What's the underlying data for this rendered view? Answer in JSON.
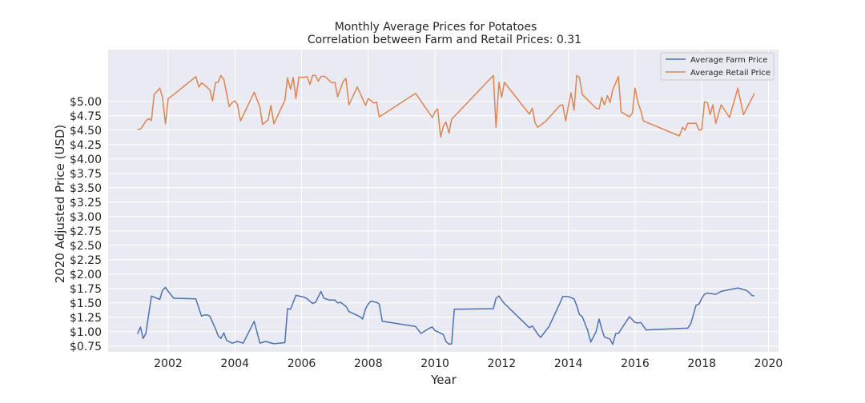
{
  "chart_data": {
    "type": "line",
    "title": "Monthly Average Prices for Potatoes",
    "subtitle": "Correlation between Farm and Retail Prices: 0.31",
    "xlabel": "Year",
    "ylabel": "2020 Adjusted Price (USD)",
    "xlim": [
      2000.2,
      2020.3
    ],
    "ylim": [
      0.65,
      5.9
    ],
    "x_ticks": [
      2002,
      2004,
      2006,
      2008,
      2010,
      2012,
      2014,
      2016,
      2018,
      2020
    ],
    "y_ticks": [
      0.75,
      1.0,
      1.25,
      1.5,
      1.75,
      2.0,
      2.25,
      2.5,
      2.75,
      3.0,
      3.25,
      3.5,
      3.75,
      4.0,
      4.25,
      4.5,
      4.75,
      5.0
    ],
    "y_tick_labels": [
      "$0.75",
      "$1.00",
      "$1.25",
      "$1.50",
      "$1.75",
      "$2.00",
      "$2.25",
      "$2.50",
      "$2.75",
      "$3.00",
      "$3.25",
      "$3.50",
      "$3.75",
      "$4.00",
      "$4.25",
      "$4.50",
      "$4.75",
      "$5.00"
    ],
    "grid": true,
    "legend_position": "top-right",
    "series": [
      {
        "name": "Average Farm Price",
        "color": "#4c72b0",
        "points": [
          [
            2001.08,
            0.96
          ],
          [
            2001.17,
            1.08
          ],
          [
            2001.25,
            0.88
          ],
          [
            2001.33,
            0.97
          ],
          [
            2001.5,
            1.62
          ],
          [
            2001.75,
            1.56
          ],
          [
            2001.83,
            1.72
          ],
          [
            2001.92,
            1.77
          ],
          [
            2002.0,
            1.7
          ],
          [
            2002.17,
            1.58
          ],
          [
            2002.83,
            1.57
          ],
          [
            2003.0,
            1.27
          ],
          [
            2003.08,
            1.29
          ],
          [
            2003.17,
            1.29
          ],
          [
            2003.25,
            1.27
          ],
          [
            2003.42,
            1.05
          ],
          [
            2003.5,
            0.93
          ],
          [
            2003.58,
            0.88
          ],
          [
            2003.67,
            0.98
          ],
          [
            2003.75,
            0.85
          ],
          [
            2003.92,
            0.8
          ],
          [
            2004.08,
            0.83
          ],
          [
            2004.25,
            0.8
          ],
          [
            2004.58,
            1.18
          ],
          [
            2004.75,
            0.8
          ],
          [
            2004.92,
            0.83
          ],
          [
            2005.17,
            0.79
          ],
          [
            2005.5,
            0.81
          ],
          [
            2005.58,
            1.4
          ],
          [
            2005.67,
            1.39
          ],
          [
            2005.83,
            1.63
          ],
          [
            2005.92,
            1.62
          ],
          [
            2006.08,
            1.6
          ],
          [
            2006.17,
            1.57
          ],
          [
            2006.33,
            1.49
          ],
          [
            2006.42,
            1.51
          ],
          [
            2006.58,
            1.7
          ],
          [
            2006.67,
            1.58
          ],
          [
            2006.83,
            1.55
          ],
          [
            2006.92,
            1.55
          ],
          [
            2007.0,
            1.55
          ],
          [
            2007.08,
            1.5
          ],
          [
            2007.17,
            1.51
          ],
          [
            2007.33,
            1.44
          ],
          [
            2007.42,
            1.35
          ],
          [
            2007.75,
            1.26
          ],
          [
            2007.83,
            1.22
          ],
          [
            2007.92,
            1.4
          ],
          [
            2008.0,
            1.48
          ],
          [
            2008.08,
            1.53
          ],
          [
            2008.25,
            1.51
          ],
          [
            2008.33,
            1.48
          ],
          [
            2008.42,
            1.18
          ],
          [
            2009.42,
            1.09
          ],
          [
            2009.58,
            0.97
          ],
          [
            2009.83,
            1.06
          ],
          [
            2009.92,
            1.08
          ],
          [
            2010.0,
            1.02
          ],
          [
            2010.08,
            1.0
          ],
          [
            2010.25,
            0.95
          ],
          [
            2010.33,
            0.83
          ],
          [
            2010.42,
            0.78
          ],
          [
            2010.5,
            0.79
          ],
          [
            2010.58,
            1.39
          ],
          [
            2011.75,
            1.4
          ],
          [
            2011.83,
            1.58
          ],
          [
            2011.92,
            1.62
          ],
          [
            2012.0,
            1.55
          ],
          [
            2012.08,
            1.49
          ],
          [
            2012.83,
            1.07
          ],
          [
            2012.92,
            1.1
          ],
          [
            2013.08,
            0.96
          ],
          [
            2013.17,
            0.9
          ],
          [
            2013.42,
            1.09
          ],
          [
            2013.67,
            1.4
          ],
          [
            2013.75,
            1.5
          ],
          [
            2013.83,
            1.61
          ],
          [
            2014.0,
            1.61
          ],
          [
            2014.17,
            1.57
          ],
          [
            2014.25,
            1.45
          ],
          [
            2014.33,
            1.3
          ],
          [
            2014.42,
            1.26
          ],
          [
            2014.58,
            1.02
          ],
          [
            2014.67,
            0.82
          ],
          [
            2014.83,
            1.0
          ],
          [
            2014.92,
            1.22
          ],
          [
            2015.0,
            1.05
          ],
          [
            2015.08,
            0.91
          ],
          [
            2015.25,
            0.87
          ],
          [
            2015.33,
            0.78
          ],
          [
            2015.42,
            0.97
          ],
          [
            2015.5,
            0.97
          ],
          [
            2015.83,
            1.26
          ],
          [
            2016.0,
            1.16
          ],
          [
            2016.08,
            1.15
          ],
          [
            2016.17,
            1.16
          ],
          [
            2016.33,
            1.03
          ],
          [
            2017.5,
            1.06
          ],
          [
            2017.58,
            1.06
          ],
          [
            2017.67,
            1.14
          ],
          [
            2017.83,
            1.46
          ],
          [
            2017.92,
            1.48
          ],
          [
            2018.0,
            1.58
          ],
          [
            2018.08,
            1.65
          ],
          [
            2018.17,
            1.67
          ],
          [
            2018.42,
            1.65
          ],
          [
            2018.58,
            1.7
          ],
          [
            2018.92,
            1.74
          ],
          [
            2019.08,
            1.76
          ],
          [
            2019.33,
            1.72
          ],
          [
            2019.42,
            1.68
          ],
          [
            2019.5,
            1.63
          ],
          [
            2019.58,
            1.62
          ]
        ]
      },
      {
        "name": "Average Retail Price",
        "color": "#dd8452",
        "points": [
          [
            2001.08,
            4.51
          ],
          [
            2001.17,
            4.52
          ],
          [
            2001.25,
            4.58
          ],
          [
            2001.33,
            4.66
          ],
          [
            2001.42,
            4.7
          ],
          [
            2001.5,
            4.67
          ],
          [
            2001.58,
            5.12
          ],
          [
            2001.75,
            5.23
          ],
          [
            2001.83,
            5.07
          ],
          [
            2001.92,
            4.61
          ],
          [
            2002.0,
            5.05
          ],
          [
            2002.17,
            5.12
          ],
          [
            2002.83,
            5.43
          ],
          [
            2002.92,
            5.25
          ],
          [
            2003.0,
            5.32
          ],
          [
            2003.08,
            5.29
          ],
          [
            2003.25,
            5.2
          ],
          [
            2003.33,
            5.01
          ],
          [
            2003.42,
            5.33
          ],
          [
            2003.5,
            5.33
          ],
          [
            2003.58,
            5.45
          ],
          [
            2003.67,
            5.38
          ],
          [
            2003.83,
            4.91
          ],
          [
            2003.92,
            4.98
          ],
          [
            2004.0,
            5.01
          ],
          [
            2004.08,
            4.94
          ],
          [
            2004.17,
            4.66
          ],
          [
            2004.58,
            5.16
          ],
          [
            2004.75,
            4.9
          ],
          [
            2004.83,
            4.6
          ],
          [
            2005.0,
            4.68
          ],
          [
            2005.08,
            4.93
          ],
          [
            2005.17,
            4.61
          ],
          [
            2005.5,
            5.02
          ],
          [
            2005.58,
            5.41
          ],
          [
            2005.67,
            5.21
          ],
          [
            2005.75,
            5.42
          ],
          [
            2005.83,
            5.05
          ],
          [
            2005.92,
            5.42
          ],
          [
            2006.08,
            5.42
          ],
          [
            2006.17,
            5.43
          ],
          [
            2006.25,
            5.29
          ],
          [
            2006.33,
            5.45
          ],
          [
            2006.42,
            5.45
          ],
          [
            2006.5,
            5.35
          ],
          [
            2006.58,
            5.43
          ],
          [
            2006.67,
            5.44
          ],
          [
            2006.75,
            5.41
          ],
          [
            2006.83,
            5.36
          ],
          [
            2006.92,
            5.32
          ],
          [
            2007.0,
            5.33
          ],
          [
            2007.08,
            5.08
          ],
          [
            2007.25,
            5.35
          ],
          [
            2007.33,
            5.4
          ],
          [
            2007.42,
            4.94
          ],
          [
            2007.67,
            5.25
          ],
          [
            2007.92,
            4.93
          ],
          [
            2008.0,
            5.05
          ],
          [
            2008.17,
            4.97
          ],
          [
            2008.25,
            4.99
          ],
          [
            2008.33,
            4.73
          ],
          [
            2009.42,
            5.14
          ],
          [
            2009.92,
            4.72
          ],
          [
            2010.0,
            4.82
          ],
          [
            2010.08,
            4.87
          ],
          [
            2010.17,
            4.38
          ],
          [
            2010.25,
            4.57
          ],
          [
            2010.33,
            4.64
          ],
          [
            2010.42,
            4.45
          ],
          [
            2010.5,
            4.69
          ],
          [
            2011.75,
            5.45
          ],
          [
            2011.83,
            4.55
          ],
          [
            2011.92,
            5.33
          ],
          [
            2012.0,
            5.07
          ],
          [
            2012.08,
            5.33
          ],
          [
            2012.83,
            4.78
          ],
          [
            2012.92,
            4.88
          ],
          [
            2013.0,
            4.63
          ],
          [
            2013.08,
            4.55
          ],
          [
            2013.33,
            4.66
          ],
          [
            2013.75,
            4.93
          ],
          [
            2013.83,
            4.94
          ],
          [
            2013.92,
            4.66
          ],
          [
            2014.0,
            4.93
          ],
          [
            2014.08,
            5.15
          ],
          [
            2014.17,
            4.85
          ],
          [
            2014.25,
            5.45
          ],
          [
            2014.33,
            5.42
          ],
          [
            2014.42,
            5.12
          ],
          [
            2014.83,
            4.88
          ],
          [
            2014.92,
            4.87
          ],
          [
            2015.0,
            5.07
          ],
          [
            2015.08,
            4.94
          ],
          [
            2015.17,
            5.1
          ],
          [
            2015.25,
            4.98
          ],
          [
            2015.33,
            5.2
          ],
          [
            2015.5,
            5.43
          ],
          [
            2015.58,
            4.82
          ],
          [
            2015.83,
            4.73
          ],
          [
            2015.92,
            4.8
          ],
          [
            2016.0,
            5.23
          ],
          [
            2016.08,
            4.99
          ],
          [
            2016.17,
            4.84
          ],
          [
            2016.25,
            4.66
          ],
          [
            2017.33,
            4.4
          ],
          [
            2017.42,
            4.55
          ],
          [
            2017.5,
            4.5
          ],
          [
            2017.58,
            4.62
          ],
          [
            2017.83,
            4.62
          ],
          [
            2017.92,
            4.5
          ],
          [
            2018.0,
            4.51
          ],
          [
            2018.08,
            4.99
          ],
          [
            2018.17,
            4.98
          ],
          [
            2018.25,
            4.77
          ],
          [
            2018.33,
            4.94
          ],
          [
            2018.42,
            4.62
          ],
          [
            2018.58,
            4.94
          ],
          [
            2018.83,
            4.72
          ],
          [
            2019.08,
            5.23
          ],
          [
            2019.25,
            4.77
          ],
          [
            2019.58,
            5.14
          ]
        ]
      }
    ]
  }
}
